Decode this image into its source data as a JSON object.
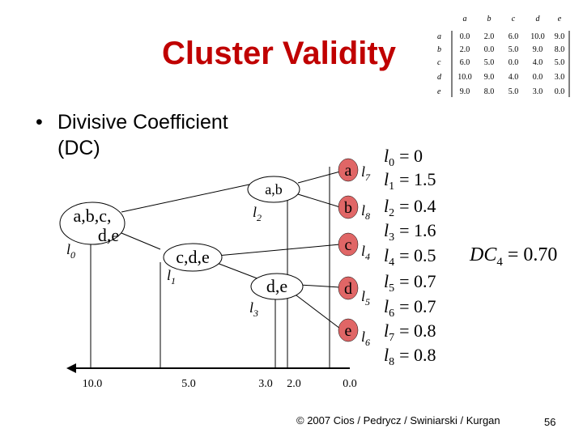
{
  "title": "Cluster Validity",
  "bullet": {
    "marker": "•",
    "line1": "Divisive Coefficient",
    "line2": "(DC)"
  },
  "matrix": {
    "col_headers": [
      "a",
      "b",
      "c",
      "d",
      "e"
    ],
    "row_headers": [
      "a",
      "b",
      "c",
      "d",
      "e"
    ],
    "rows": [
      [
        "0.0",
        "2.0",
        "6.0",
        "10.0",
        "9.0"
      ],
      [
        "2.0",
        "0.0",
        "5.0",
        "9.0",
        "8.0"
      ],
      [
        "6.0",
        "5.0",
        "0.0",
        "4.0",
        "5.0"
      ],
      [
        "10.0",
        "9.0",
        "4.0",
        "0.0",
        "3.0"
      ],
      [
        "9.0",
        "8.0",
        "5.0",
        "3.0",
        "0.0"
      ]
    ]
  },
  "diagram": {
    "clusters": {
      "abcde_line1": "a,b,c,",
      "abcde_line2": "d,e",
      "ab": "a,b",
      "cde": "c,d,e",
      "de": "d,e"
    },
    "leaves": [
      "a",
      "b",
      "c",
      "d",
      "e"
    ],
    "leaf_color": "#e06666",
    "level_labels": {
      "l0": "l",
      "l0_sub": "0",
      "l1": "l",
      "l1_sub": "1",
      "l2": "l",
      "l2_sub": "2",
      "l3": "l",
      "l3_sub": "3"
    },
    "leaf_level_labels": [
      {
        "l": "l",
        "sub": "7"
      },
      {
        "l": "l",
        "sub": "8"
      },
      {
        "l": "l",
        "sub": "4"
      },
      {
        "l": "l",
        "sub": "5"
      },
      {
        "l": "l",
        "sub": "6"
      }
    ],
    "axis_ticks": [
      "10.0",
      "5.0",
      "3.0",
      "2.0",
      "0.0"
    ]
  },
  "levels": [
    {
      "l": "l",
      "sub": "0",
      "eq": "= 0"
    },
    {
      "l": "l",
      "sub": "1",
      "eq": "= 1.5"
    },
    {
      "l": "l",
      "sub": "2",
      "eq": "= 0.4"
    },
    {
      "l": "l",
      "sub": "3",
      "eq": "= 1.6"
    },
    {
      "l": "l",
      "sub": "4",
      "eq": "= 0.5"
    },
    {
      "l": "l",
      "sub": "5",
      "eq": "= 0.7"
    },
    {
      "l": "l",
      "sub": "6",
      "eq": "= 0.7"
    },
    {
      "l": "l",
      "sub": "7",
      "eq": "= 0.8"
    },
    {
      "l": "l",
      "sub": "8",
      "eq": "= 0.8"
    }
  ],
  "dc": {
    "name": "DC",
    "sub": "4",
    "eq": "= 0.70"
  },
  "footer": "© 2007 Cios / Pedrycz / Swiniarski / Kurgan",
  "page_number": "56"
}
